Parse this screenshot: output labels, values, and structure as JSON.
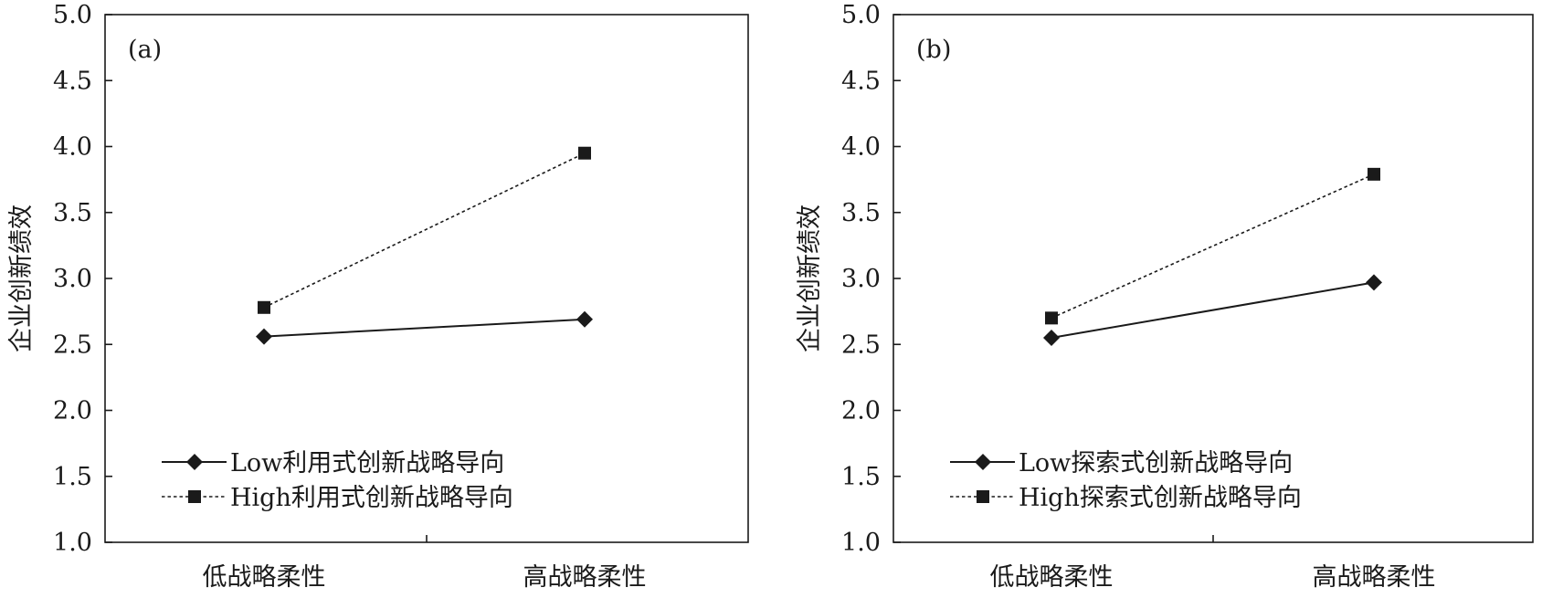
{
  "chart_data": [
    {
      "type": "line",
      "panel_label": "(a)",
      "ylabel": "企业创新绩效",
      "xlabel": "",
      "categories": [
        "低战略柔性",
        "高战略柔性"
      ],
      "ylim": [
        1.0,
        5.0
      ],
      "yticks": [
        "1.0",
        "1.5",
        "2.0",
        "2.5",
        "3.0",
        "3.5",
        "4.0",
        "4.5",
        "5.0"
      ],
      "grid": false,
      "legend_position": "bottom-left",
      "series": [
        {
          "name": "Low利用式创新战略导向",
          "values": [
            2.56,
            2.69
          ],
          "marker": "diamond",
          "line_style": "solid"
        },
        {
          "name": "High利用式创新战略导向",
          "values": [
            2.78,
            3.95
          ],
          "marker": "square",
          "line_style": "dotted"
        }
      ]
    },
    {
      "type": "line",
      "panel_label": "(b)",
      "ylabel": "企业创新绩效",
      "xlabel": "",
      "categories": [
        "低战略柔性",
        "高战略柔性"
      ],
      "ylim": [
        1.0,
        5.0
      ],
      "yticks": [
        "1.0",
        "1.5",
        "2.0",
        "2.5",
        "3.0",
        "3.5",
        "4.0",
        "4.5",
        "5.0"
      ],
      "grid": false,
      "legend_position": "bottom-left",
      "series": [
        {
          "name": "Low探索式创新战略导向",
          "values": [
            2.55,
            2.97
          ],
          "marker": "diamond",
          "line_style": "solid"
        },
        {
          "name": "High探索式创新战略导向",
          "values": [
            2.7,
            3.79
          ],
          "marker": "square",
          "line_style": "dotted"
        }
      ]
    }
  ]
}
